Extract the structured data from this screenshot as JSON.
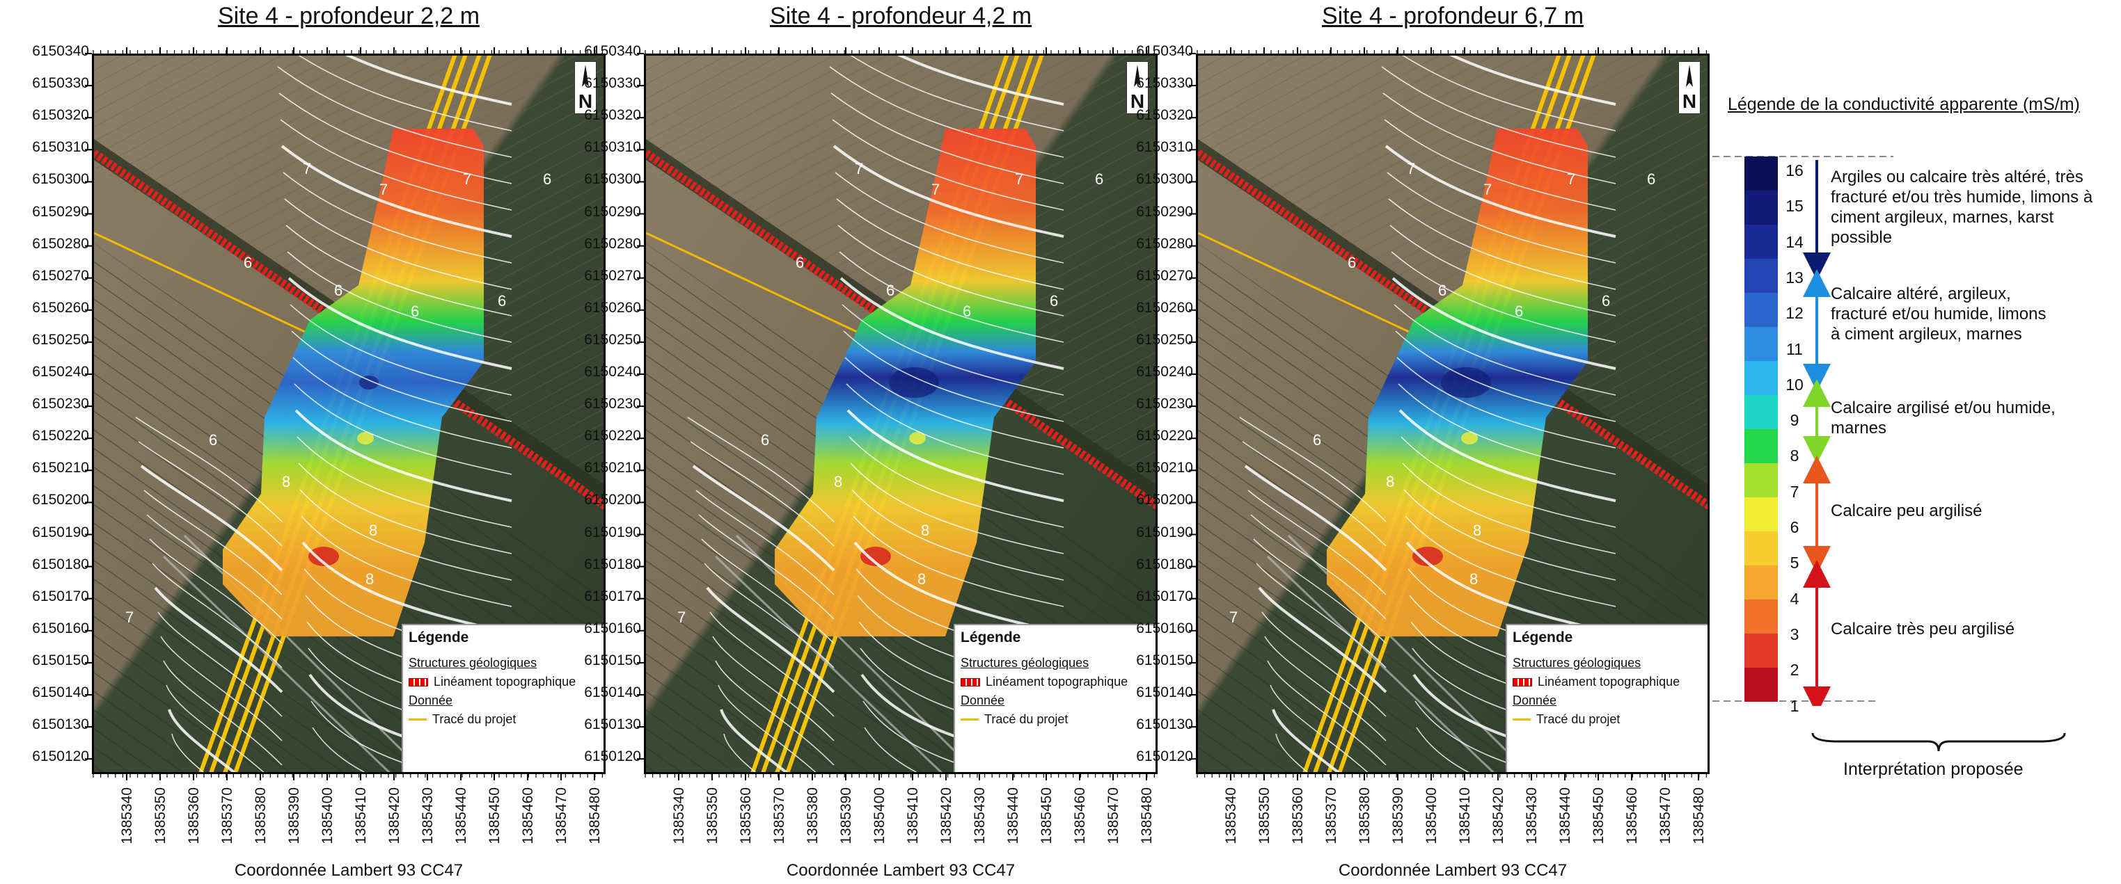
{
  "panels": [
    {
      "title": "Site 4 - profondeur 2,2 m"
    },
    {
      "title": "Site 4 - profondeur 4,2 m"
    },
    {
      "title": "Site 4 - profondeur 6,7 m"
    }
  ],
  "axis": {
    "y_ticks": [
      "6150340",
      "6150330",
      "6150320",
      "6150310",
      "6150300",
      "6150290",
      "6150280",
      "6150270",
      "6150260",
      "6150250",
      "6150240",
      "6150230",
      "6150220",
      "6150210",
      "6150200",
      "6150190",
      "6150180",
      "6150170",
      "6150160",
      "6150150",
      "6150140",
      "6150130",
      "6150120"
    ],
    "x_ticks": [
      "1385340",
      "1385350",
      "1385360",
      "1385370",
      "1385380",
      "1385390",
      "1385400",
      "1385410",
      "1385420",
      "1385430",
      "1385440",
      "1385450",
      "1385460",
      "1385470",
      "1385480"
    ],
    "x_label": "Coordonnée Lambert 93 CC47"
  },
  "contour_labels": [
    "7",
    "7",
    "7",
    "6",
    "6",
    "6",
    "6",
    "6",
    "6",
    "8",
    "8",
    "7",
    "8"
  ],
  "north_label": "N",
  "map_legend": {
    "title": "Légende",
    "section1": "Structures géologiques",
    "item1": "Linéament topographique",
    "section2": "Donnée",
    "item2": "Tracé du projet"
  },
  "conductivity_legend": {
    "title": "Légende de la conductivité apparente (mS/m)",
    "values": [
      "16",
      "15",
      "14",
      "13",
      "12",
      "11",
      "10",
      "9",
      "8",
      "7",
      "6",
      "5",
      "4",
      "3",
      "2",
      "1"
    ],
    "colors": [
      "#0b1055",
      "#141a78",
      "#1b2b96",
      "#2344b4",
      "#2a66cc",
      "#2f8ce0",
      "#2bb6ec",
      "#1fd6c6",
      "#22d84a",
      "#a6e02e",
      "#f2ee35",
      "#f7cd30",
      "#f6a62c",
      "#f0722a",
      "#e23a26",
      "#b8101c"
    ],
    "interpretations": [
      "Argiles ou calcaire très altéré, très fracturé et/ou très humide, limons à ciment argileux, marnes, karst possible",
      "Calcaire altéré, argileux, fracturé et/ou humide, limons à ciment argileux, marnes",
      "Calcaire argilisé et/ou humide, marnes",
      "Calcaire peu argilisé",
      "Calcaire très peu argilisé"
    ],
    "bracket_label": "Interprétation proposée"
  }
}
